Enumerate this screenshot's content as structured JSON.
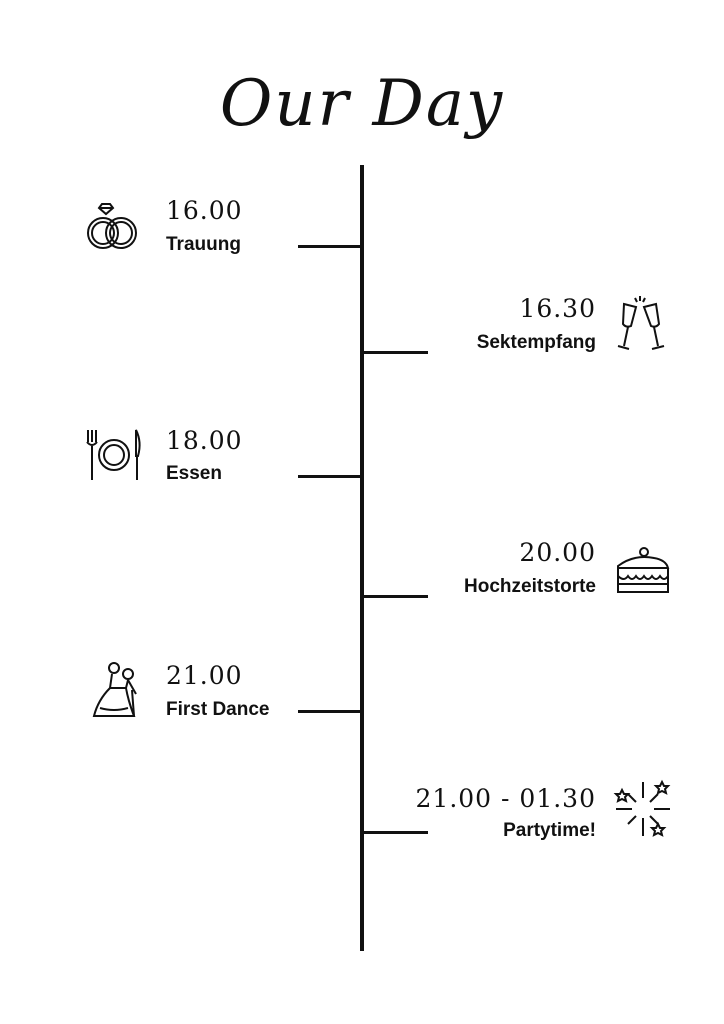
{
  "title": "Our Day",
  "events": [
    {
      "time": "16.00",
      "label": "Trauung",
      "icon": "wedding-rings-icon"
    },
    {
      "time": "16.30",
      "label": "Sektempfang",
      "icon": "champagne-glasses-icon"
    },
    {
      "time": "18.00",
      "label": "Essen",
      "icon": "plate-cutlery-icon"
    },
    {
      "time": "20.00",
      "label": "Hochzeitstorte",
      "icon": "cake-slice-icon"
    },
    {
      "time": "21.00",
      "label": "First Dance",
      "icon": "dancing-couple-icon"
    },
    {
      "time": "21.00 - 01.30",
      "label": "Partytime!",
      "icon": "fireworks-icon"
    }
  ],
  "colors": {
    "ink": "#111111",
    "background": "#ffffff"
  }
}
